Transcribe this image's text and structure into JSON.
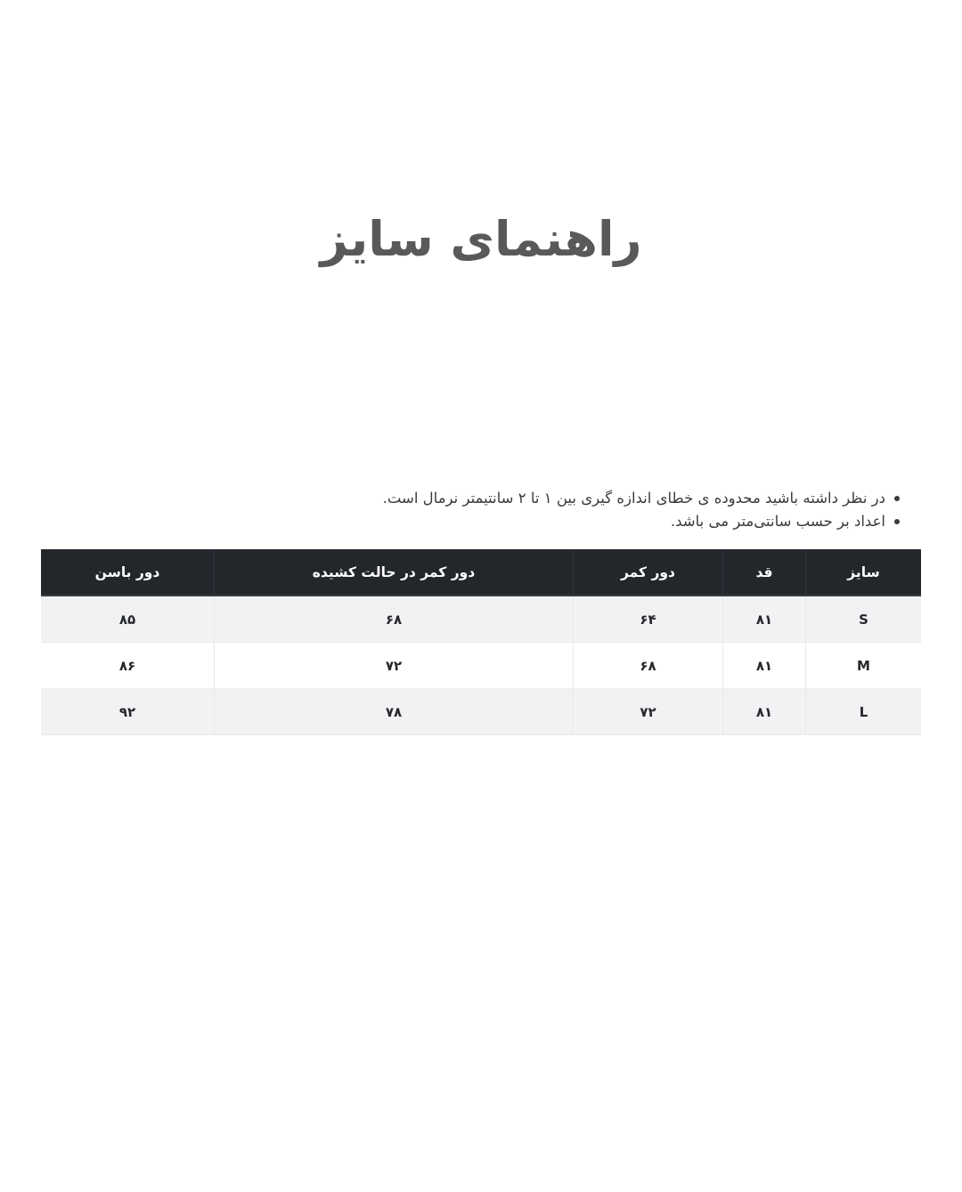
{
  "page": {
    "title": "راهنمای سایز"
  },
  "notes": {
    "items": [
      "در نظر داشته باشید محدوده ی خطای اندازه گیری بین ۱ تا ۲ سانتیمتر نرمال است.",
      "اعداد بر حسب سانتی‌متر می باشد."
    ]
  },
  "size_table": {
    "columns": [
      "سایز",
      "قد",
      "دور کمر",
      "دور کمر در حالت کشیده",
      "دور باسن"
    ],
    "rows": [
      [
        "S",
        "۸۱",
        "۶۴",
        "۶۸",
        "۸۵"
      ],
      [
        "M",
        "۸۱",
        "۶۸",
        "۷۲",
        "۸۶"
      ],
      [
        "L",
        "۸۱",
        "۷۲",
        "۷۸",
        "۹۲"
      ]
    ]
  },
  "colors": {
    "header_bg": "#23262b",
    "header_text": "#ffffff",
    "stripe_bg": "#f1f2f3",
    "title_text": "#58595b",
    "cell_text": "#26282c"
  }
}
